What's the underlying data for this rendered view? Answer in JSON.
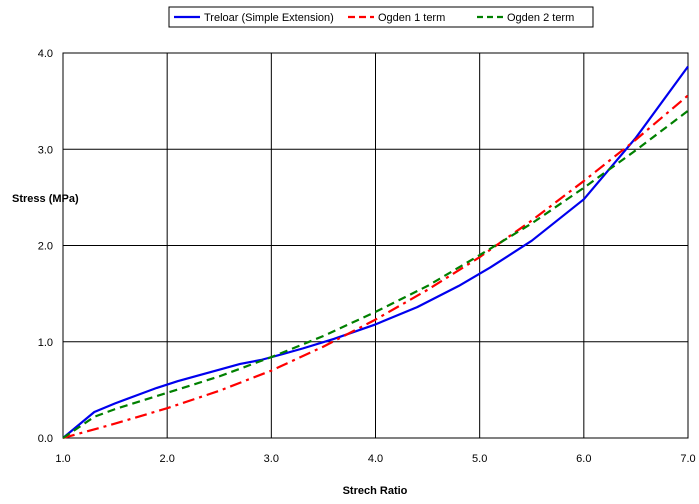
{
  "chart_data": {
    "type": "line",
    "title": "",
    "xlabel": "Strech Ratio",
    "ylabel": "Stress (MPa)",
    "xlim": [
      1.0,
      7.0
    ],
    "ylim": [
      0.0,
      4.0
    ],
    "x_ticks": [
      "1.0",
      "2.0",
      "3.0",
      "4.0",
      "5.0",
      "6.0",
      "7.0"
    ],
    "y_ticks": [
      "0.0",
      "1.0",
      "2.0",
      "3.0",
      "4.0"
    ],
    "grid": true,
    "legend_position": "top",
    "series": [
      {
        "name": "Treloar (Simple Extension)",
        "color": "#0000ee",
        "style": "solid",
        "x": [
          1.0,
          1.3,
          1.5,
          1.7,
          1.9,
          2.1,
          2.3,
          2.5,
          2.7,
          2.9,
          3.1,
          3.3,
          3.6,
          4.0,
          4.4,
          4.8,
          5.1,
          5.5,
          6.0,
          6.5,
          7.0
        ],
        "y": [
          0.0,
          0.27,
          0.36,
          0.44,
          0.52,
          0.59,
          0.65,
          0.71,
          0.77,
          0.81,
          0.87,
          0.93,
          1.03,
          1.18,
          1.36,
          1.58,
          1.77,
          2.05,
          2.48,
          3.12,
          3.86
        ]
      },
      {
        "name": "Ogden 1 term",
        "color": "#ff0000",
        "style": "dash-dot",
        "x": [
          1.0,
          1.5,
          2.0,
          2.5,
          3.0,
          3.5,
          4.0,
          4.5,
          5.0,
          5.5,
          6.0,
          6.5,
          7.0
        ],
        "y": [
          0.0,
          0.15,
          0.31,
          0.49,
          0.7,
          0.95,
          1.23,
          1.54,
          1.88,
          2.26,
          2.67,
          3.1,
          3.56
        ]
      },
      {
        "name": "Ogden 2 term",
        "color": "#008000",
        "style": "dashed",
        "x": [
          1.0,
          1.3,
          1.5,
          2.0,
          2.5,
          3.0,
          3.5,
          4.0,
          4.5,
          5.0,
          5.5,
          6.0,
          6.5,
          7.0
        ],
        "y": [
          0.0,
          0.22,
          0.3,
          0.47,
          0.64,
          0.84,
          1.06,
          1.31,
          1.58,
          1.9,
          2.23,
          2.6,
          2.99,
          3.4
        ]
      }
    ]
  }
}
